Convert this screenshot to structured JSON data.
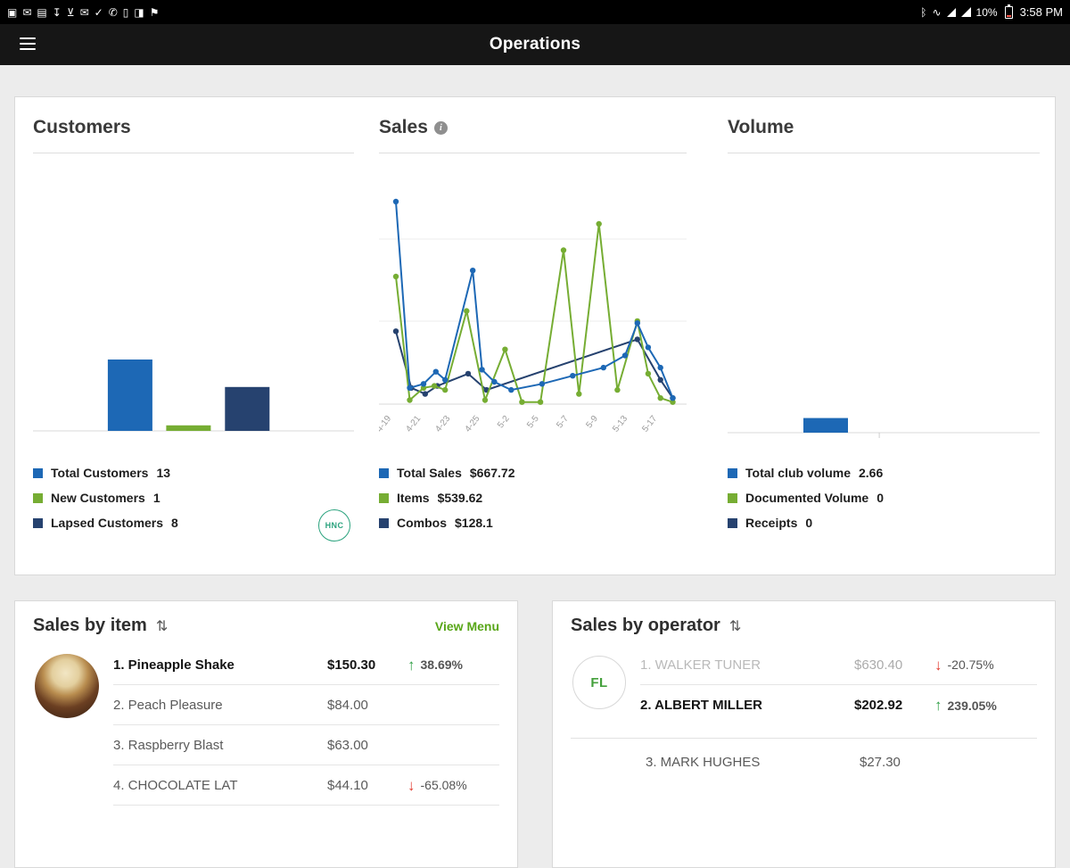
{
  "status_bar": {
    "time": "3:58 PM",
    "battery_percent": "10%",
    "left_icons": [
      {
        "name": "screenshot-icon",
        "glyph": "▣"
      },
      {
        "name": "email-icon",
        "glyph": "✉"
      },
      {
        "name": "gallery-icon",
        "glyph": "▤"
      },
      {
        "name": "download-icon",
        "glyph": "↧"
      },
      {
        "name": "update-icon",
        "glyph": "⊻"
      },
      {
        "name": "message-icon",
        "glyph": "✉"
      },
      {
        "name": "checkmark-icon",
        "glyph": "✓"
      },
      {
        "name": "phone-icon",
        "glyph": "✆"
      },
      {
        "name": "sim-icon",
        "glyph": "▯"
      },
      {
        "name": "app-notification-icon",
        "glyph": "◨"
      },
      {
        "name": "flag-icon",
        "glyph": "⚑"
      }
    ],
    "bluetooth_glyph": "ᛒ",
    "vibrate_glyph": "∿"
  },
  "app_bar": {
    "title": "Operations"
  },
  "customers": {
    "title": "Customers",
    "badge": "HNC",
    "legend": [
      {
        "label": "Total Customers",
        "value": "13",
        "color": "#1d68b5"
      },
      {
        "label": "New Customers",
        "value": "1",
        "color": "#76ad33"
      },
      {
        "label": "Lapsed Customers",
        "value": "8",
        "color": "#26426f"
      }
    ],
    "chart_data": {
      "type": "bar",
      "max": 13,
      "scale_h": 80,
      "baseline": 311,
      "bars": [
        {
          "label": "Total Customers",
          "value": 13,
          "x": 0.233,
          "w": 0.139,
          "color": "#1d68b5"
        },
        {
          "label": "New Customers",
          "value": 1,
          "x": 0.415,
          "w": 0.139,
          "color": "#76ad33"
        },
        {
          "label": "Lapsed Customers",
          "value": 8,
          "x": 0.598,
          "w": 0.139,
          "color": "#26426f"
        }
      ]
    }
  },
  "sales": {
    "title": "Sales",
    "info_icon": "i",
    "legend": [
      {
        "label": "Total Sales",
        "value": "$667.72",
        "color": "#1d68b5"
      },
      {
        "label": "Items",
        "value": "$539.62",
        "color": "#76ad33"
      },
      {
        "label": "Combos",
        "value": "$128.1",
        "color": "#26426f"
      }
    ],
    "chart_data": {
      "type": "line",
      "baseline": 281,
      "top": 54,
      "gridlines": [
        96,
        188
      ],
      "x_labels": [
        "4-19",
        "4-21",
        "4-23",
        "4-25",
        "5-2",
        "5-5",
        "5-7",
        "5-9",
        "5-13",
        "5-17"
      ],
      "label_start": 0.04,
      "label_step": 0.096,
      "series": [
        {
          "name": "Combos",
          "color": "#26426f",
          "points": [
            [
              0.055,
              36
            ],
            [
              0.105,
              8
            ],
            [
              0.15,
              5
            ],
            [
              0.19,
              9
            ],
            [
              0.29,
              15
            ],
            [
              0.35,
              7
            ],
            [
              0.84,
              32
            ],
            [
              0.915,
              12
            ],
            [
              0.955,
              3
            ]
          ]
        },
        {
          "name": "Items",
          "color": "#76ad33",
          "points": [
            [
              0.055,
              63
            ],
            [
              0.1,
              2
            ],
            [
              0.145,
              8
            ],
            [
              0.18,
              9
            ],
            [
              0.215,
              7
            ],
            [
              0.285,
              46
            ],
            [
              0.345,
              2
            ],
            [
              0.41,
              27
            ],
            [
              0.465,
              1
            ],
            [
              0.525,
              1
            ],
            [
              0.6,
              76
            ],
            [
              0.65,
              5
            ],
            [
              0.715,
              89
            ],
            [
              0.775,
              7
            ],
            [
              0.84,
              41
            ],
            [
              0.875,
              15
            ],
            [
              0.915,
              3
            ],
            [
              0.955,
              1
            ]
          ]
        },
        {
          "name": "Total Sales",
          "color": "#1d68b5",
          "points": [
            [
              0.055,
              100
            ],
            [
              0.1,
              8
            ],
            [
              0.145,
              10
            ],
            [
              0.185,
              16
            ],
            [
              0.215,
              12
            ],
            [
              0.305,
              66
            ],
            [
              0.335,
              17
            ],
            [
              0.375,
              11
            ],
            [
              0.43,
              7
            ],
            [
              0.53,
              10
            ],
            [
              0.63,
              14
            ],
            [
              0.73,
              18
            ],
            [
              0.8,
              24
            ],
            [
              0.84,
              40
            ],
            [
              0.875,
              28
            ],
            [
              0.915,
              18
            ],
            [
              0.955,
              3
            ]
          ]
        }
      ]
    }
  },
  "volume": {
    "title": "Volume",
    "legend": [
      {
        "label": "Total club volume",
        "value": "2.66",
        "color": "#1d68b5"
      },
      {
        "label": "Documented Volume",
        "value": "0",
        "color": "#76ad33"
      },
      {
        "label": "Receipts",
        "value": "0",
        "color": "#26426f"
      }
    ],
    "chart_data": {
      "type": "bar",
      "max": 13,
      "scale_h": 80,
      "baseline": 313,
      "ticks": [
        0.486
      ],
      "bars": [
        {
          "label": "Total club volume",
          "value": 2.66,
          "x": 0.243,
          "w": 0.143,
          "color": "#1d68b5"
        }
      ]
    }
  },
  "sales_by_item": {
    "title": "Sales by item",
    "sort_glyph": "⇅",
    "action": "View Menu",
    "rows": [
      {
        "name": "1. Pineapple Shake",
        "amount": "$150.30",
        "change": "38.69%",
        "direction": "up",
        "emphasis": "bold"
      },
      {
        "name": "2. Peach Pleasure",
        "amount": "$84.00",
        "change": null,
        "direction": null,
        "emphasis": null
      },
      {
        "name": "3. Raspberry Blast",
        "amount": "$63.00",
        "change": null,
        "direction": null,
        "emphasis": null
      },
      {
        "name": "4. CHOCOLATE LAT",
        "amount": "$44.10",
        "change": "-65.08%",
        "direction": "down",
        "emphasis": null
      }
    ]
  },
  "sales_by_operator": {
    "title": "Sales by operator",
    "sort_glyph": "⇅",
    "badge": "FL",
    "rows": [
      {
        "name": "1. WALKER TUNER",
        "amount": "$630.40",
        "change": "-20.75%",
        "direction": "down",
        "emphasis": "muted"
      },
      {
        "name": "2. ALBERT MILLER",
        "amount": "$202.92",
        "change": "239.05%",
        "direction": "up",
        "emphasis": "bold"
      }
    ],
    "extra_rows": [
      {
        "name": "3. MARK HUGHES",
        "amount": "$27.30",
        "change": null,
        "direction": null,
        "emphasis": null
      }
    ]
  }
}
